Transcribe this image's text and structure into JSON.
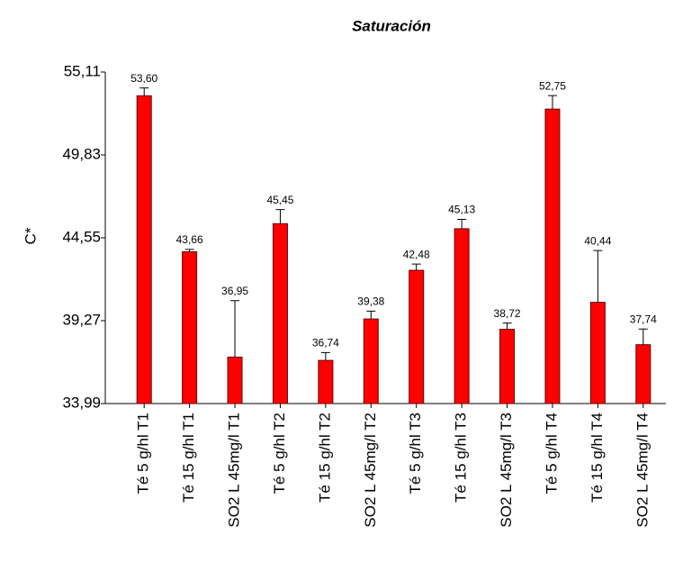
{
  "chart_data": {
    "type": "bar",
    "title": "Saturación",
    "ylabel": "C*",
    "categories": [
      "Té 5 g/hl T1",
      "Té 15 g/hl T1",
      "SO2 L 45mg/l T1",
      "Té 5 g/hl T2",
      "Té 15 g/hl T2",
      "SO2 L 45mg/l T2",
      "Té 5 g/hl T3",
      "Té 15 g/hl T3",
      "SO2 L 45mg/l T3",
      "Té 5 g/hl T4",
      "Té 15 g/hl T4",
      "SO2 L 45mg/l T4"
    ],
    "values": [
      53.6,
      43.66,
      36.95,
      45.45,
      36.74,
      39.38,
      42.48,
      45.13,
      38.72,
      52.75,
      40.44,
      37.74
    ],
    "value_labels": [
      "53,60",
      "43,66",
      "36,95",
      "45,45",
      "36,74",
      "39,38",
      "42,48",
      "45,13",
      "38,72",
      "52,75",
      "40,44",
      "37,74"
    ],
    "errors": [
      0.5,
      0.15,
      3.6,
      0.9,
      0.5,
      0.5,
      0.4,
      0.6,
      0.4,
      0.86,
      3.3,
      1.0
    ],
    "color": "#ff0000",
    "ylim": [
      33.99,
      55.11
    ],
    "yticks": [
      {
        "value": 33.99,
        "label": "33,99"
      },
      {
        "value": 39.27,
        "label": "39,27"
      },
      {
        "value": 44.55,
        "label": "44,55"
      },
      {
        "value": 49.83,
        "label": "49,83"
      },
      {
        "value": 55.11,
        "label": "55,11"
      }
    ]
  }
}
